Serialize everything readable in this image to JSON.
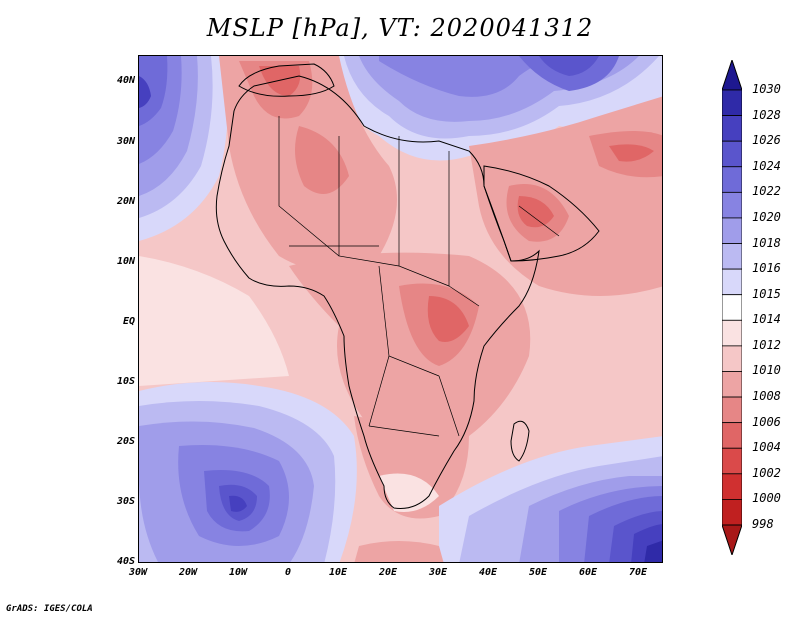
{
  "title": "MSLP [hPa], VT: 2020041312",
  "credit": "GrADS: IGES/COLA",
  "lat_labels": [
    "40N",
    "30N",
    "20N",
    "10N",
    "EQ",
    "10S",
    "20S",
    "30S",
    "40S"
  ],
  "lon_labels": [
    "30W",
    "20W",
    "10W",
    "0",
    "10E",
    "20E",
    "30E",
    "40E",
    "50E",
    "60E",
    "70E"
  ],
  "colorbar": {
    "levels": [
      "1030",
      "1028",
      "1026",
      "1024",
      "1022",
      "1020",
      "1018",
      "1016",
      "1015",
      "1014",
      "1012",
      "1010",
      "1008",
      "1006",
      "1004",
      "1002",
      "1000",
      "998"
    ],
    "colors": [
      "#1e1890",
      "#2f2aa8",
      "#4640bf",
      "#5a55cc",
      "#6f6bd8",
      "#8783e2",
      "#a09dea",
      "#bbbaf2",
      "#d8d8fa",
      "#ffffff",
      "#fae2e2",
      "#f5c7c7",
      "#eda4a4",
      "#e68686",
      "#e06666",
      "#da4a4a",
      "#d03030",
      "#c02020",
      "#a81818"
    ]
  },
  "colors": {
    "ocean_trop": "#f5c7c7",
    "land_low": "#eda4a4",
    "high_core": "#4640bf",
    "border": "#000000"
  }
}
